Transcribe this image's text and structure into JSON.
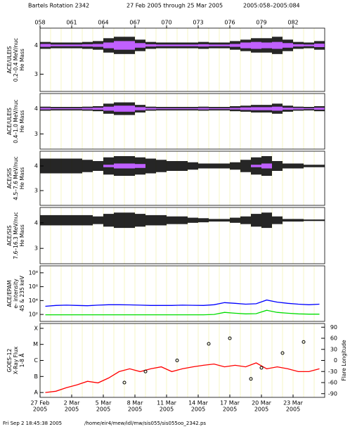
{
  "header": {
    "parts": [
      "Bartels Rotation 2342",
      "27 Feb 2005 through 25 Mar 2005",
      "2005:058–2005:084"
    ]
  },
  "footer": {
    "parts": [
      "Fri Sep  2 18:45:38 2005",
      "/home/eir4/mew/idl/mw/sis055/sis055oo_2342.ps"
    ]
  },
  "chart_data": [
    {
      "type": "mass",
      "ylabel": [
        "ACE/ULEIS",
        "0.2–0.4 MeV/nuc",
        "He Mass"
      ],
      "xlim": [
        58,
        85
      ],
      "ylim": [
        2.4,
        4.6
      ],
      "yticks": [
        3,
        4
      ],
      "x2ticks": [
        {
          "value": 58,
          "label": "058"
        },
        {
          "value": 61,
          "label": "061"
        },
        {
          "value": 64,
          "label": "064"
        },
        {
          "value": 67,
          "label": "067"
        },
        {
          "value": 70,
          "label": "070"
        },
        {
          "value": 73,
          "label": "073"
        },
        {
          "value": 76,
          "label": "076"
        },
        {
          "value": 79,
          "label": "079"
        },
        {
          "value": 82,
          "label": "082"
        }
      ],
      "x": [
        58,
        59,
        60,
        61,
        62,
        63,
        64,
        65,
        66,
        67,
        68,
        69,
        70,
        71,
        72,
        73,
        74,
        75,
        76,
        77,
        78,
        79,
        80,
        81,
        82,
        83,
        84
      ],
      "center": 4,
      "color": "#000",
      "core_color": "#c060ff",
      "spread": [
        0.12,
        0.1,
        0.1,
        0.1,
        0.12,
        0.15,
        0.25,
        0.3,
        0.3,
        0.2,
        0.12,
        0.1,
        0.1,
        0.1,
        0.1,
        0.12,
        0.1,
        0.1,
        0.15,
        0.2,
        0.25,
        0.25,
        0.3,
        0.2,
        0.12,
        0.1,
        0.15
      ],
      "core": [
        0.05,
        0.03,
        0.03,
        0.03,
        0.04,
        0.05,
        0.1,
        0.15,
        0.15,
        0.08,
        0.04,
        0.03,
        0.03,
        0.03,
        0.03,
        0.04,
        0.03,
        0.03,
        0.05,
        0.1,
        0.12,
        0.1,
        0.12,
        0.08,
        0.04,
        0.03,
        0.06
      ]
    },
    {
      "type": "mass",
      "ylabel": [
        "ACE/ULEIS",
        "0.4–1.0 MeV/nuc",
        "He Mass"
      ],
      "xlim": [
        58,
        85
      ],
      "ylim": [
        2.4,
        4.6
      ],
      "yticks": [
        3,
        4
      ],
      "x": [
        58,
        59,
        60,
        61,
        62,
        63,
        64,
        65,
        66,
        67,
        68,
        69,
        70,
        71,
        72,
        73,
        74,
        75,
        76,
        77,
        78,
        79,
        80,
        81,
        82,
        83,
        84
      ],
      "center": 4,
      "color": "#000",
      "core_color": "#c060ff",
      "spread": [
        0.08,
        0.07,
        0.07,
        0.07,
        0.08,
        0.1,
        0.2,
        0.25,
        0.25,
        0.15,
        0.08,
        0.07,
        0.07,
        0.07,
        0.07,
        0.08,
        0.07,
        0.07,
        0.1,
        0.12,
        0.15,
        0.15,
        0.2,
        0.12,
        0.08,
        0.07,
        0.1
      ],
      "core": [
        0.03,
        0.02,
        0.02,
        0.02,
        0.03,
        0.04,
        0.08,
        0.12,
        0.12,
        0.06,
        0.03,
        0.02,
        0.02,
        0.02,
        0.02,
        0.03,
        0.02,
        0.02,
        0.03,
        0.05,
        0.06,
        0.06,
        0.08,
        0.04,
        0.03,
        0.02,
        0.04
      ]
    },
    {
      "type": "mass",
      "ylabel": [
        "ACE/SIS",
        "4.5–7.6 MeV/nuc",
        "He Mass"
      ],
      "xlim": [
        58,
        85
      ],
      "ylim": [
        2.4,
        4.6
      ],
      "yticks": [
        3,
        4
      ],
      "x": [
        58,
        59,
        60,
        61,
        62,
        63,
        64,
        65,
        66,
        67,
        68,
        69,
        70,
        71,
        72,
        73,
        74,
        75,
        76,
        77,
        78,
        79,
        80,
        81,
        82,
        83,
        84
      ],
      "center": 4,
      "color": "#000",
      "core_color": "#c060ff",
      "spread": [
        0.3,
        0.3,
        0.3,
        0.3,
        0.25,
        0.2,
        0.35,
        0.4,
        0.4,
        0.35,
        0.3,
        0.25,
        0.2,
        0.2,
        0.15,
        0.1,
        0.1,
        0.1,
        0.15,
        0.25,
        0.35,
        0.4,
        0.2,
        0.1,
        0.1,
        0.05,
        0.05
      ],
      "core": [
        0,
        0,
        0,
        0,
        0,
        0,
        0.05,
        0.1,
        0.1,
        0.08,
        0,
        0,
        0,
        0,
        0,
        0,
        0,
        0,
        0,
        0,
        0.05,
        0.1,
        0,
        0,
        0,
        0,
        0
      ]
    },
    {
      "type": "mass",
      "ylabel": [
        "ACE/SIS",
        "7.6–16.3 MeV/nuc",
        "He Mass"
      ],
      "xlim": [
        58,
        85
      ],
      "ylim": [
        2.4,
        4.6
      ],
      "yticks": [
        3,
        4
      ],
      "x": [
        58,
        59,
        60,
        61,
        62,
        63,
        64,
        65,
        66,
        67,
        68,
        69,
        70,
        71,
        72,
        73,
        74,
        75,
        76,
        77,
        78,
        79,
        80,
        81,
        82,
        83,
        84
      ],
      "center": 4.1,
      "color": "#000",
      "core_color": "#c060ff",
      "spread": [
        0.2,
        0.2,
        0.2,
        0.2,
        0.2,
        0.15,
        0.25,
        0.3,
        0.3,
        0.25,
        0.2,
        0.2,
        0.15,
        0.15,
        0.1,
        0.08,
        0.05,
        0.05,
        0.1,
        0.15,
        0.25,
        0.3,
        0.15,
        0.05,
        0.05,
        0.03,
        0.03
      ],
      "core": [
        0,
        0,
        0,
        0,
        0,
        0,
        0,
        0,
        0,
        0,
        0,
        0,
        0,
        0,
        0,
        0,
        0,
        0,
        0,
        0,
        0,
        0,
        0,
        0,
        0,
        0,
        0
      ]
    },
    {
      "type": "log_line",
      "ylabel": [
        "ACE/EPAM",
        "e- intensity",
        "45 & 235 keV"
      ],
      "xlim": [
        58,
        85
      ],
      "ylim": [
        10,
        1000000000
      ],
      "yticks": [
        {
          "value": 100,
          "label": "10²"
        },
        {
          "value": 10000,
          "label": "10⁴"
        },
        {
          "value": 1000000,
          "label": "10⁶"
        },
        {
          "value": 100000000,
          "label": "10⁸"
        }
      ],
      "x": [
        58,
        59,
        60,
        61,
        62,
        63,
        64,
        65,
        66,
        67,
        68,
        69,
        70,
        71,
        72,
        73,
        74,
        75,
        76,
        77,
        78,
        79,
        80,
        81,
        82,
        83,
        84
      ],
      "series": [
        {
          "color": "#0000ff",
          "values": [
            1500,
            2000,
            2200,
            2000,
            1800,
            2200,
            2500,
            2500,
            2400,
            2200,
            2000,
            2000,
            2000,
            2200,
            2100,
            2000,
            2500,
            5000,
            4000,
            3000,
            3500,
            12000,
            6000,
            4000,
            3000,
            2500,
            3000
          ]
        },
        {
          "color": "#00dd00",
          "values": [
            90,
            90,
            90,
            90,
            90,
            90,
            90,
            90,
            90,
            90,
            90,
            90,
            90,
            90,
            90,
            90,
            100,
            200,
            150,
            120,
            130,
            400,
            200,
            150,
            120,
            110,
            110
          ]
        }
      ]
    },
    {
      "type": "goes",
      "ylabel": [
        "GOES-12",
        "X-Ray Flux",
        "1-8 Å"
      ],
      "y2label": "Flare Longitude",
      "xlim": [
        58,
        85
      ],
      "ylim": [
        5e-09,
        0.0002
      ],
      "yticks": [
        {
          "value": 1e-08,
          "label": "A"
        },
        {
          "value": 1e-07,
          "label": "B"
        },
        {
          "value": 1e-06,
          "label": "C"
        },
        {
          "value": 1e-05,
          "label": "M"
        },
        {
          "value": 0.0001,
          "label": "X"
        }
      ],
      "y2lim": [
        -100,
        100
      ],
      "y2ticks": [
        90,
        60,
        30,
        0,
        -30,
        -60,
        -90
      ],
      "xticks": [
        {
          "value": 58,
          "label": "27 Feb",
          "year": "2005"
        },
        {
          "value": 61,
          "label": "2 Mar",
          "year": "2005"
        },
        {
          "value": 64,
          "label": "5 Mar",
          "year": "2005"
        },
        {
          "value": 67,
          "label": "8 Mar",
          "year": "2005"
        },
        {
          "value": 70,
          "label": "11 Mar",
          "year": "2005"
        },
        {
          "value": 73,
          "label": "14 Mar",
          "year": "2005"
        },
        {
          "value": 76,
          "label": "17 Mar",
          "year": "2005"
        },
        {
          "value": 79,
          "label": "20 Mar",
          "year": "2005"
        },
        {
          "value": 82,
          "label": "23 Mar",
          "year": "2005"
        }
      ],
      "x": [
        58,
        59,
        60,
        61,
        62,
        63,
        64,
        65,
        66,
        67,
        68,
        69,
        70,
        71,
        72,
        73,
        74,
        75,
        76,
        77,
        78,
        79,
        80,
        81,
        82,
        83,
        84
      ],
      "series": [
        {
          "color": "#ff0000",
          "values": [
            1e-08,
            1.2e-08,
            2e-08,
            3e-08,
            5e-08,
            4e-08,
            8e-08,
            2e-07,
            3e-07,
            2e-07,
            3e-07,
            4e-07,
            2e-07,
            3e-07,
            4e-07,
            5e-07,
            6e-07,
            4e-07,
            5e-07,
            4e-07,
            7e-07,
            3e-07,
            4e-07,
            3e-07,
            2e-07,
            2e-07,
            3e-07
          ]
        }
      ],
      "flares": {
        "color": "#000",
        "axis": "y2",
        "x": [
          66,
          68,
          71,
          74,
          76,
          78,
          79,
          81,
          83
        ],
        "values": [
          -60,
          -30,
          0,
          45,
          60,
          -50,
          -20,
          20,
          50
        ]
      }
    }
  ]
}
